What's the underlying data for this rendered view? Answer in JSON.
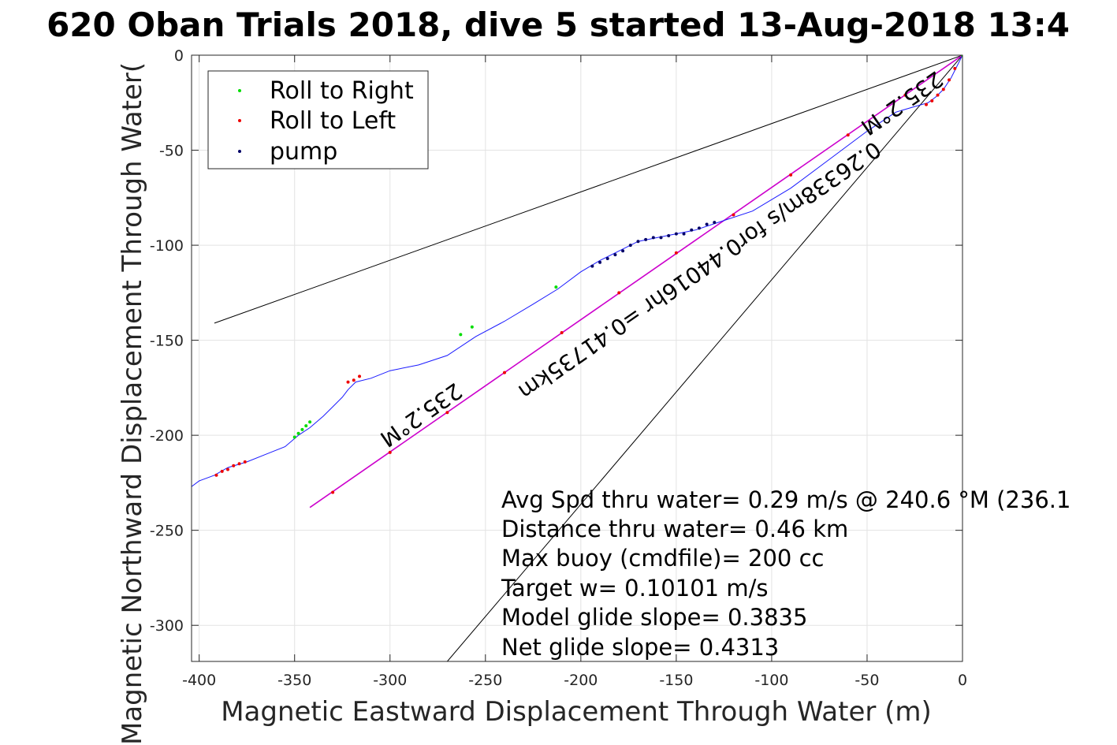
{
  "chart_data": {
    "type": "scatter",
    "title": "620 Oban Trials 2018, dive 5 started 13-Aug-2018 13:4",
    "xlabel": "Magnetic Eastward Displacement Through Water (m)",
    "ylabel": "Magnetic Northward Displacement Through Water(",
    "xlim": [
      -404,
      0
    ],
    "ylim": [
      -319,
      0
    ],
    "x_ticks": [
      -400,
      -350,
      -300,
      -250,
      -200,
      -150,
      -100,
      -50,
      0
    ],
    "y_ticks": [
      0,
      -50,
      -100,
      -150,
      -200,
      -250,
      -300
    ],
    "grid": true,
    "legend": {
      "placement": "top-left",
      "entries": [
        {
          "label": "Roll to Right",
          "color": "#00dd00"
        },
        {
          "label": "Roll to Left",
          "color": "#ee0000"
        },
        {
          "label": "pump",
          "color": "#000066"
        }
      ]
    },
    "colors": {
      "track": "#1a1aff",
      "net_line": "#cc00cc",
      "envelope": "#000000",
      "roll_right": "#00dd00",
      "roll_left": "#ee0000",
      "pump": "#000066"
    },
    "track": {
      "name": "glider track",
      "x": [
        0,
        -3,
        -6,
        -10,
        -14,
        -18,
        -25,
        -35,
        -50,
        -70,
        -90,
        -110,
        -128,
        -140,
        -150,
        -155,
        -160,
        -170,
        -180,
        -190,
        -200,
        -212,
        -225,
        -240,
        -255,
        -270,
        -285,
        -300,
        -310,
        -318,
        -322,
        -325,
        -330,
        -335,
        -342,
        -348,
        -355,
        -365,
        -375,
        -385,
        -392,
        -400,
        -404
      ],
      "y": [
        0,
        -6,
        -12,
        -18,
        -22,
        -25,
        -27,
        -30,
        -40,
        -55,
        -70,
        -82,
        -88,
        -92,
        -94,
        -95,
        -96,
        -98,
        -103,
        -108,
        -114,
        -123,
        -131,
        -140,
        -148,
        -158,
        -163,
        -166,
        -170,
        -172,
        -176,
        -180,
        -185,
        -190,
        -196,
        -200,
        -206,
        -210,
        -214,
        -217,
        -221,
        -224,
        -227
      ]
    },
    "net_line": {
      "name": "net displacement",
      "x": [
        0,
        -342
      ],
      "y": [
        0,
        -238
      ]
    },
    "envelope_lines": [
      {
        "x": [
          0,
          -392
        ],
        "y": [
          0,
          -141
        ]
      },
      {
        "x": [
          0,
          -270
        ],
        "y": [
          0,
          -319
        ]
      }
    ],
    "markers": {
      "roll_right": {
        "x": [
          0,
          -213,
          -257,
          -263,
          -342,
          -344,
          -346,
          -348,
          -350
        ],
        "y": [
          0,
          -122,
          -143,
          -147,
          -193,
          -195,
          -197,
          -199,
          -201
        ]
      },
      "roll_left": {
        "x": [
          -4,
          -7,
          -10,
          -13,
          -16,
          -19,
          -316,
          -319,
          -322,
          -376,
          -379,
          -382,
          -385,
          -388,
          -391
        ],
        "y": [
          -7,
          -13,
          -18,
          -21,
          -24,
          -26,
          -169,
          -171,
          -172,
          -214,
          -215,
          -216,
          -218,
          -219,
          -221
        ],
        "net_x": [
          -30,
          -60,
          -90,
          -120,
          -150,
          -180,
          -210,
          -240,
          -270,
          -300,
          -330
        ],
        "net_y": [
          -21,
          -42,
          -63,
          -84,
          -104,
          -125,
          -146,
          -167,
          -188,
          -209,
          -230
        ]
      },
      "pump": {
        "x": [
          -130,
          -134,
          -138,
          -142,
          -146,
          -150,
          -154,
          -158,
          -162,
          -166,
          -170,
          -174,
          -178,
          -182,
          -186,
          -190,
          -194
        ],
        "y": [
          -88,
          -89,
          -91,
          -92,
          -94,
          -94,
          -95,
          -96,
          -96,
          -97,
          -98,
          -100,
          -103,
          -105,
          -107,
          -109,
          -111
        ]
      }
    },
    "annotations": [
      {
        "id": "heading_1",
        "text": "235.2°M",
        "x": -34,
        "y": -22
      },
      {
        "id": "heading_2",
        "text": "235.2°M",
        "x": -286,
        "y": -186
      },
      {
        "id": "net_label",
        "text": "0.26338m/s for0.44016hr =0.41735km",
        "x": -140,
        "y": -110
      }
    ],
    "summary_lines": [
      "Avg Spd thru water=  0.29 m/s @ 240.6 °M (236.1",
      "Distance thru water=  0.46 km",
      "Max buoy (cmdfile)= 200 cc",
      "Target w= 0.10101 m/s",
      "Model glide slope= 0.3835",
      "Net glide slope= 0.4313"
    ]
  }
}
